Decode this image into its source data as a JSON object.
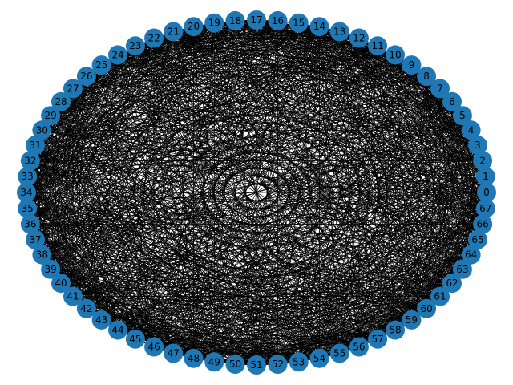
{
  "graph": {
    "layout": "circular",
    "node_color": "#1f78b4",
    "edge_color": "#000000",
    "background": "#ffffff",
    "nodes": [
      "0",
      "1",
      "2",
      "3",
      "4",
      "5",
      "6",
      "7",
      "8",
      "9",
      "10",
      "11",
      "12",
      "13",
      "14",
      "15",
      "16",
      "17",
      "18",
      "19",
      "20",
      "21",
      "22",
      "23",
      "24",
      "25",
      "26",
      "27",
      "28",
      "29",
      "30",
      "31",
      "32",
      "33",
      "34",
      "35",
      "36",
      "37",
      "38",
      "39",
      "40",
      "41",
      "42",
      "43",
      "44",
      "45",
      "46",
      "47",
      "48",
      "49",
      "50",
      "51",
      "52",
      "53",
      "54",
      "55",
      "56",
      "57",
      "58",
      "59",
      "60",
      "61",
      "62",
      "63",
      "64",
      "65",
      "66",
      "67"
    ],
    "edges": "dense (near-complete); individual connections not distinguishable"
  }
}
